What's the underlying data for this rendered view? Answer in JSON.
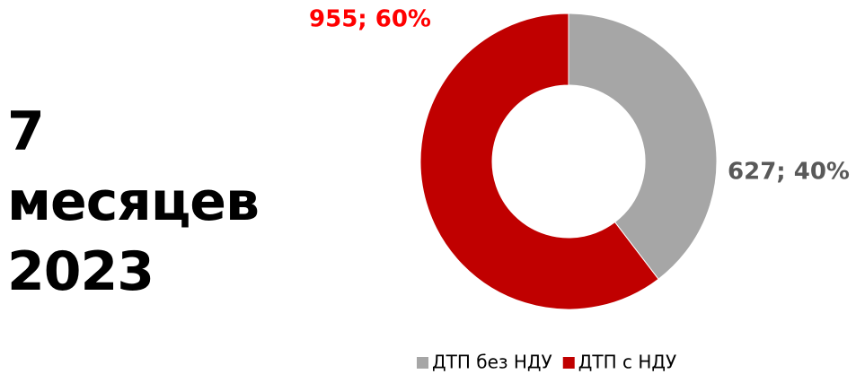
{
  "chart_data": {
    "type": "donut",
    "title": "7 месяцев 2023",
    "categories": [
      "ДТП без НДУ",
      "ДТП с НДУ"
    ],
    "values": [
      627,
      955
    ],
    "value_labels": [
      "627; 40%",
      "955; 60%"
    ],
    "colors": [
      "#a6a6a6",
      "#c00000"
    ],
    "value_label_colors": [
      "#595959",
      "#ff0000"
    ],
    "legend": "bottom"
  }
}
